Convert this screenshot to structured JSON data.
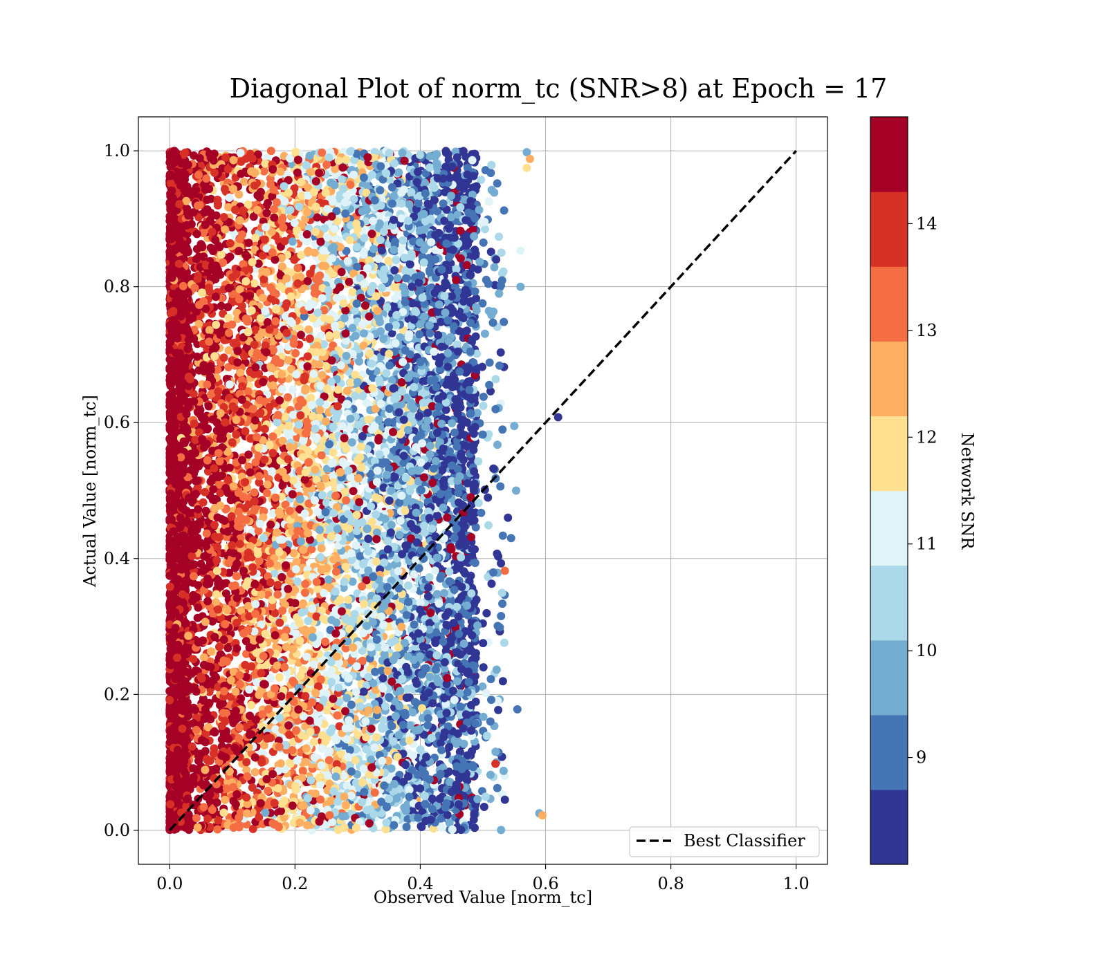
{
  "chart_data": {
    "type": "scatter",
    "title": "Diagonal Plot of norm_tc (SNR>8) at Epoch = 17",
    "xlabel": "Observed Value [norm_tc]",
    "ylabel": "Actual Value [norm_tc]",
    "xlim": [
      -0.05,
      1.05
    ],
    "ylim": [
      -0.05,
      1.05
    ],
    "x_ticks": [
      {
        "value": 0.0,
        "label": "0.0"
      },
      {
        "value": 0.2,
        "label": "0.2"
      },
      {
        "value": 0.4,
        "label": "0.4"
      },
      {
        "value": 0.6,
        "label": "0.6"
      },
      {
        "value": 0.8,
        "label": "0.8"
      },
      {
        "value": 1.0,
        "label": "1.0"
      }
    ],
    "y_ticks": [
      {
        "value": 0.0,
        "label": "0.0"
      },
      {
        "value": 0.2,
        "label": "0.2"
      },
      {
        "value": 0.4,
        "label": "0.4"
      },
      {
        "value": 0.6,
        "label": "0.6"
      },
      {
        "value": 0.8,
        "label": "0.8"
      },
      {
        "value": 1.0,
        "label": "1.0"
      }
    ],
    "grid": true,
    "legend": {
      "placement": "lower-right",
      "entries": [
        {
          "label": "Best Classifier",
          "style": "dashed",
          "color": "#000000"
        }
      ]
    },
    "reference_line": {
      "name": "Best Classifier",
      "x": [
        0.0,
        1.0
      ],
      "y": [
        0.0,
        1.0
      ]
    },
    "colorbar": {
      "label": "Network SNR",
      "range": [
        8.0,
        15.0
      ],
      "ticks": [
        {
          "value": 9,
          "label": "9"
        },
        {
          "value": 10,
          "label": "10"
        },
        {
          "value": 11,
          "label": "11"
        },
        {
          "value": 12,
          "label": "12"
        },
        {
          "value": 13,
          "label": "13"
        },
        {
          "value": 14,
          "label": "14"
        }
      ],
      "colors": [
        "#313695",
        "#4575b4",
        "#74add1",
        "#abd9e9",
        "#e0f3f8",
        "#fee090",
        "#fdae61",
        "#f46d43",
        "#d73027",
        "#a50026"
      ]
    },
    "point_distribution": {
      "x_range": [
        0.0,
        0.5
      ],
      "y_range": [
        0.0,
        1.0
      ],
      "snr_trend": "high SNR near x = 0, lower SNR toward x = 0.5"
    },
    "outliers": [
      {
        "x": 0.62,
        "y": 0.608,
        "snr": 8.3
      },
      {
        "x": 0.57,
        "y": 0.998,
        "snr": 10.0
      },
      {
        "x": 0.575,
        "y": 0.988,
        "snr": 12.8
      },
      {
        "x": 0.57,
        "y": 0.975,
        "snr": 12.2
      },
      {
        "x": 0.56,
        "y": 0.853,
        "snr": 11.3
      },
      {
        "x": 0.56,
        "y": 0.8,
        "snr": 9.8
      },
      {
        "x": 0.55,
        "y": 0.595,
        "snr": 10.1
      },
      {
        "x": 0.553,
        "y": 0.5,
        "snr": 9.4
      },
      {
        "x": 0.59,
        "y": 0.025,
        "snr": 9.9
      },
      {
        "x": 0.595,
        "y": 0.022,
        "snr": 12.3
      },
      {
        "x": 0.535,
        "y": 0.382,
        "snr": 13.2
      },
      {
        "x": 0.555,
        "y": 0.178,
        "snr": 8.8
      },
      {
        "x": 0.54,
        "y": 0.46,
        "snr": 8.5
      },
      {
        "x": 0.545,
        "y": 0.43,
        "snr": 9.0
      },
      {
        "x": 0.535,
        "y": 0.045,
        "snr": 8.7
      },
      {
        "x": 0.52,
        "y": 0.098,
        "snr": 14.0
      }
    ]
  }
}
